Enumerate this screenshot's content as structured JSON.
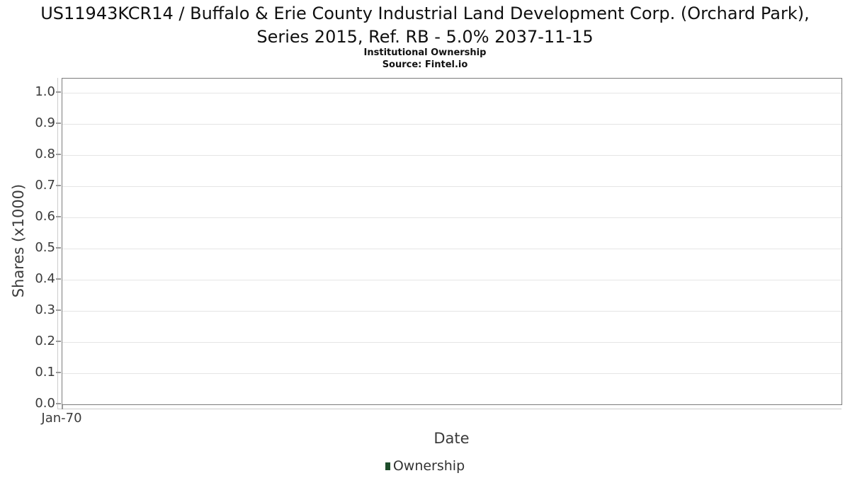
{
  "header": {
    "title": "US11943KCR14 / Buffalo & Erie County Industrial Land Development Corp. (Orchard Park), Series 2015, Ref. RB - 5.0% 2037-11-15",
    "subtitle": "Institutional Ownership",
    "source": "Source: Fintel.io"
  },
  "chart_data": {
    "type": "line",
    "title": "US11943KCR14 / Buffalo & Erie County Industrial Land Development Corp. (Orchard Park), Series 2015, Ref. RB - 5.0% 2037-11-15",
    "subtitle": "Institutional Ownership",
    "source": "Source: Fintel.io",
    "xlabel": "Date",
    "ylabel": "Shares (x1000)",
    "x_tick_labels": [
      "Jan-70"
    ],
    "y_tick_labels": [
      "0.0",
      "0.1",
      "0.2",
      "0.3",
      "0.4",
      "0.5",
      "0.6",
      "0.7",
      "0.8",
      "0.9",
      "1.0"
    ],
    "y_tick_values": [
      0.0,
      0.1,
      0.2,
      0.3,
      0.4,
      0.5,
      0.6,
      0.7,
      0.8,
      0.9,
      1.0
    ],
    "ylim": [
      0.0,
      1.045
    ],
    "grid": true,
    "legend_position": "bottom",
    "series": [
      {
        "name": "Ownership",
        "color": "#1e4d2b",
        "x": [],
        "values": []
      }
    ]
  },
  "colors": {
    "plot_border": "#7b7b7b",
    "gridline": "#e5e5e5",
    "outer_axis_line": "#cccccc",
    "tick_mark": "#9a9a9a",
    "tick_text": "#3b3b3b",
    "title_text": "#101010",
    "legend_marker": "#1e4d2b"
  }
}
